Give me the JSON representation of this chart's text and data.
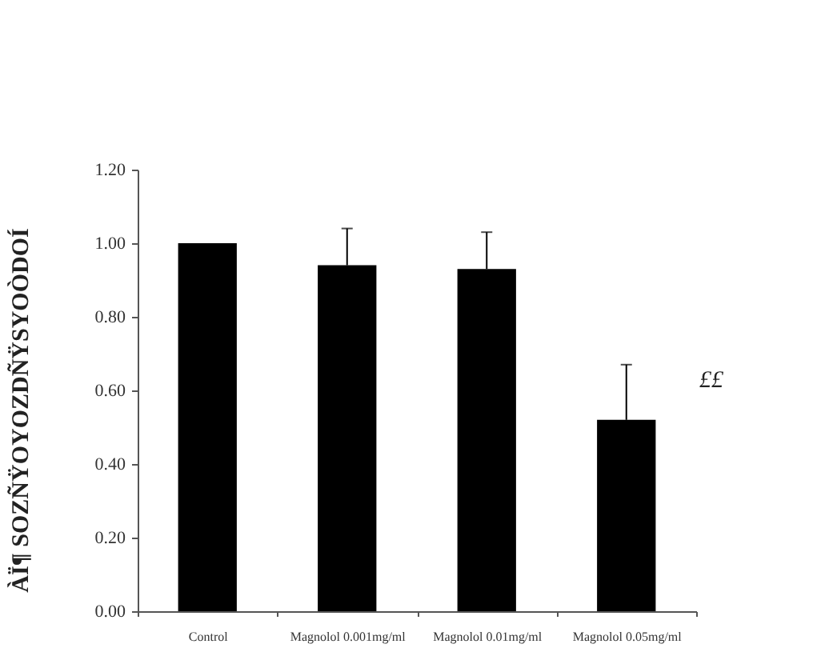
{
  "chart_data": {
    "type": "bar",
    "ylabel": "ÀÏ¶ SOZÑŸOYOZDÑŸSYOÒDOÍ",
    "categories": [
      "Control",
      "Magnolol 0.001mg/ml",
      "Magnolol 0.01mg/ml",
      "Magnolol 0.05mg/ml"
    ],
    "values": [
      1.0,
      0.94,
      0.93,
      0.52
    ],
    "errors": [
      null,
      0.1,
      0.1,
      0.15
    ],
    "color": "#000000",
    "ylim": [
      0,
      1.2
    ],
    "yticks": [
      {
        "value": 0,
        "label": "0.00"
      },
      {
        "value": 0.2,
        "label": "0.20"
      },
      {
        "value": 0.4,
        "label": "0.40"
      },
      {
        "value": 0.6,
        "label": "0.60"
      },
      {
        "value": 0.8,
        "label": "0.80"
      },
      {
        "value": 1.0,
        "label": "1.00"
      },
      {
        "value": 1.2,
        "label": "1.20"
      }
    ],
    "annotations": [
      "££"
    ]
  }
}
